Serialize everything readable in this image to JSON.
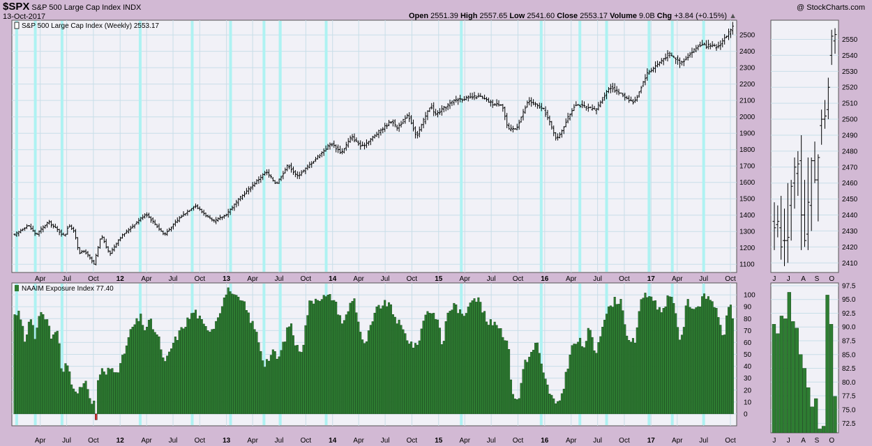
{
  "header": {
    "symbol": "$SPX",
    "name": "S&P 500 Large Cap Index",
    "exchange": "INDX",
    "date": "13-Oct-2017",
    "watermark": "@ StockCharts.com",
    "open_label": "Open",
    "open": "2551.39",
    "high_label": "High",
    "high": "2557.65",
    "low_label": "Low",
    "low": "2541.60",
    "close_label": "Close",
    "close": "2553.17",
    "volume_label": "Volume",
    "volume": "9.0B",
    "chg_label": "Chg",
    "chg": "+3.84 (+0.15%)"
  },
  "colors": {
    "background": "#d2b9d4",
    "panel": "#f1f1f7",
    "grid": "#c8dee8",
    "highlight": "#aef2f2",
    "price_bar": "#000000",
    "histogram": "#2e7d32",
    "histogram_negative": "#d32f2f"
  },
  "chart_data": [
    {
      "type": "ohlc",
      "legend": "S&P 500 Large Cap Index (Weekly) 2553.17",
      "y_ticks": [
        1100,
        1200,
        1300,
        1400,
        1500,
        1600,
        1700,
        1800,
        1900,
        2000,
        2100,
        2200,
        2300,
        2400,
        2500
      ],
      "ylim": [
        1050,
        2590
      ],
      "x_range": [
        "2011-01-03",
        "2017-10-13"
      ],
      "x_ticks": [
        {
          "date": "2011-04-01",
          "label": "Apr",
          "bold": false
        },
        {
          "date": "2011-07-01",
          "label": "Jul",
          "bold": false
        },
        {
          "date": "2011-10-01",
          "label": "Oct",
          "bold": false
        },
        {
          "date": "2012-01-01",
          "label": "12",
          "bold": true
        },
        {
          "date": "2012-04-01",
          "label": "Apr",
          "bold": false
        },
        {
          "date": "2012-07-01",
          "label": "Jul",
          "bold": false
        },
        {
          "date": "2012-10-01",
          "label": "Oct",
          "bold": false
        },
        {
          "date": "2013-01-01",
          "label": "13",
          "bold": true
        },
        {
          "date": "2013-04-01",
          "label": "Apr",
          "bold": false
        },
        {
          "date": "2013-07-01",
          "label": "Jul",
          "bold": false
        },
        {
          "date": "2013-10-01",
          "label": "Oct",
          "bold": false
        },
        {
          "date": "2014-01-01",
          "label": "14",
          "bold": true
        },
        {
          "date": "2014-04-01",
          "label": "Apr",
          "bold": false
        },
        {
          "date": "2014-07-01",
          "label": "Jul",
          "bold": false
        },
        {
          "date": "2014-10-01",
          "label": "Oct",
          "bold": false
        },
        {
          "date": "2015-01-01",
          "label": "15",
          "bold": true
        },
        {
          "date": "2015-04-01",
          "label": "Apr",
          "bold": false
        },
        {
          "date": "2015-07-01",
          "label": "Jul",
          "bold": false
        },
        {
          "date": "2015-10-01",
          "label": "Oct",
          "bold": false
        },
        {
          "date": "2016-01-01",
          "label": "16",
          "bold": true
        },
        {
          "date": "2016-04-01",
          "label": "Apr",
          "bold": false
        },
        {
          "date": "2016-07-01",
          "label": "Jul",
          "bold": false
        },
        {
          "date": "2016-10-01",
          "label": "Oct",
          "bold": false
        },
        {
          "date": "2017-01-01",
          "label": "17",
          "bold": true
        },
        {
          "date": "2017-04-01",
          "label": "Apr",
          "bold": false
        },
        {
          "date": "2017-07-01",
          "label": "Jul",
          "bold": false
        },
        {
          "date": "2017-10-01",
          "label": "Oct",
          "bold": false
        }
      ],
      "highlight_dates": [
        "2011-01-10",
        "2011-03-15",
        "2011-06-15",
        "2012-03-10",
        "2012-09-05",
        "2013-01-15",
        "2013-05-10",
        "2013-07-05",
        "2013-12-10",
        "2015-03-20",
        "2015-12-20",
        "2016-05-01",
        "2016-08-01",
        "2016-12-25",
        "2017-03-15",
        "2017-07-01"
      ],
      "close_path": [
        [
          "2011-01-03",
          1280
        ],
        [
          "2011-02-18",
          1340
        ],
        [
          "2011-03-18",
          1280
        ],
        [
          "2011-04-29",
          1360
        ],
        [
          "2011-06-24",
          1270
        ],
        [
          "2011-07-08",
          1345
        ],
        [
          "2011-07-29",
          1290
        ],
        [
          "2011-08-12",
          1170
        ],
        [
          "2011-09-02",
          1180
        ],
        [
          "2011-10-03",
          1100
        ],
        [
          "2011-10-28",
          1280
        ],
        [
          "2011-11-25",
          1160
        ],
        [
          "2011-12-30",
          1260
        ],
        [
          "2012-03-30",
          1410
        ],
        [
          "2012-06-01",
          1280
        ],
        [
          "2012-07-27",
          1390
        ],
        [
          "2012-09-14",
          1460
        ],
        [
          "2012-11-16",
          1360
        ],
        [
          "2012-12-28",
          1400
        ],
        [
          "2013-02-22",
          1515
        ],
        [
          "2013-05-17",
          1665
        ],
        [
          "2013-06-21",
          1590
        ],
        [
          "2013-08-02",
          1710
        ],
        [
          "2013-08-30",
          1635
        ],
        [
          "2013-10-04",
          1690
        ],
        [
          "2013-12-27",
          1840
        ],
        [
          "2014-01-31",
          1780
        ],
        [
          "2014-03-07",
          1880
        ],
        [
          "2014-04-11",
          1815
        ],
        [
          "2014-07-25",
          1980
        ],
        [
          "2014-08-08",
          1930
        ],
        [
          "2014-09-19",
          2010
        ],
        [
          "2014-10-17",
          1880
        ],
        [
          "2014-12-05",
          2075
        ],
        [
          "2014-12-19",
          2010
        ],
        [
          "2015-02-27",
          2105
        ],
        [
          "2015-05-22",
          2125
        ],
        [
          "2015-07-10",
          2075
        ],
        [
          "2015-08-07",
          2080
        ],
        [
          "2015-08-28",
          1920
        ],
        [
          "2015-09-25",
          1930
        ],
        [
          "2015-11-06",
          2100
        ],
        [
          "2015-12-31",
          2040
        ],
        [
          "2016-02-12",
          1860
        ],
        [
          "2016-04-15",
          2080
        ],
        [
          "2016-06-24",
          2040
        ],
        [
          "2016-08-12",
          2185
        ],
        [
          "2016-11-04",
          2085
        ],
        [
          "2016-12-16",
          2260
        ],
        [
          "2017-03-03",
          2385
        ],
        [
          "2017-04-14",
          2330
        ],
        [
          "2017-06-16",
          2440
        ],
        [
          "2017-08-18",
          2425
        ],
        [
          "2017-10-13",
          2553
        ]
      ]
    },
    {
      "type": "ohlc",
      "inset_of": "S&P 500 Large Cap Index (Weekly) 2553.17",
      "x_labels": [
        "J",
        "J",
        "A",
        "S",
        "O"
      ],
      "y_ticks": [
        2410,
        2420,
        2430,
        2440,
        2450,
        2460,
        2470,
        2480,
        2490,
        2500,
        2510,
        2520,
        2530,
        2540,
        2550
      ],
      "ylim": [
        2404,
        2562
      ],
      "bars": [
        [
          2436,
          2448,
          2418,
          2432
        ],
        [
          2434,
          2446,
          2426,
          2436
        ],
        [
          2432,
          2452,
          2412,
          2420
        ],
        [
          2424,
          2444,
          2408,
          2424
        ],
        [
          2424,
          2460,
          2410,
          2426
        ],
        [
          2446,
          2462,
          2424,
          2458
        ],
        [
          2460,
          2476,
          2444,
          2470
        ],
        [
          2466,
          2480,
          2452,
          2472
        ],
        [
          2474,
          2490,
          2418,
          2440
        ],
        [
          2440,
          2462,
          2420,
          2424
        ],
        [
          2428,
          2476,
          2418,
          2448
        ],
        [
          2446,
          2476,
          2430,
          2474
        ],
        [
          2474,
          2486,
          2460,
          2462
        ],
        [
          2462,
          2478,
          2436,
          2476
        ],
        [
          2496,
          2506,
          2484,
          2500
        ],
        [
          2500,
          2512,
          2494,
          2502
        ],
        [
          2506,
          2526,
          2500,
          2520
        ],
        [
          2540,
          2556,
          2534,
          2552
        ],
        [
          2549,
          2557,
          2541,
          2553
        ]
      ]
    },
    {
      "type": "bar",
      "legend": "NAAIM Exposure Index 77.40",
      "y_ticks": [
        0,
        10,
        20,
        30,
        40,
        50,
        60,
        70,
        80,
        90,
        100
      ],
      "ylim": [
        -10,
        110
      ],
      "negative_date": "2011-10-07",
      "negative_value": -5,
      "path": [
        [
          "2011-01-03",
          80
        ],
        [
          "2011-01-14",
          87
        ],
        [
          "2011-01-28",
          78
        ],
        [
          "2011-02-11",
          55
        ],
        [
          "2011-02-18",
          78
        ],
        [
          "2011-03-04",
          84
        ],
        [
          "2011-03-11",
          58
        ],
        [
          "2011-03-25",
          80
        ],
        [
          "2011-04-15",
          85
        ],
        [
          "2011-05-13",
          62
        ],
        [
          "2011-05-27",
          75
        ],
        [
          "2011-06-10",
          48
        ],
        [
          "2011-06-17",
          25
        ],
        [
          "2011-06-24",
          48
        ],
        [
          "2011-07-08",
          38
        ],
        [
          "2011-07-22",
          22
        ],
        [
          "2011-08-12",
          20
        ],
        [
          "2011-09-09",
          25
        ],
        [
          "2011-09-30",
          5
        ],
        [
          "2011-10-14",
          25
        ],
        [
          "2011-10-28",
          38
        ],
        [
          "2011-11-11",
          32
        ],
        [
          "2011-11-25",
          38
        ],
        [
          "2011-12-30",
          38
        ],
        [
          "2012-02-10",
          72
        ],
        [
          "2012-03-16",
          82
        ],
        [
          "2012-03-23",
          70
        ],
        [
          "2012-04-13",
          78
        ],
        [
          "2012-05-18",
          60
        ],
        [
          "2012-06-01",
          40
        ],
        [
          "2012-06-29",
          58
        ],
        [
          "2012-08-10",
          75
        ],
        [
          "2012-09-14",
          87
        ],
        [
          "2012-10-19",
          72
        ],
        [
          "2012-11-16",
          72
        ],
        [
          "2012-12-21",
          95
        ],
        [
          "2013-01-11",
          108
        ],
        [
          "2013-01-25",
          98
        ],
        [
          "2013-03-01",
          93
        ],
        [
          "2013-04-19",
          65
        ],
        [
          "2013-05-10",
          42
        ],
        [
          "2013-06-14",
          52
        ],
        [
          "2013-06-28",
          45
        ],
        [
          "2013-08-09",
          78
        ],
        [
          "2013-08-30",
          55
        ],
        [
          "2013-09-20",
          55
        ],
        [
          "2013-10-11",
          92
        ],
        [
          "2013-11-08",
          98
        ],
        [
          "2014-01-03",
          98
        ],
        [
          "2014-02-07",
          75
        ],
        [
          "2014-03-14",
          100
        ],
        [
          "2014-04-18",
          55
        ],
        [
          "2014-06-06",
          90
        ],
        [
          "2014-07-11",
          93
        ],
        [
          "2014-08-08",
          80
        ],
        [
          "2014-09-19",
          62
        ],
        [
          "2014-10-17",
          55
        ],
        [
          "2014-11-21",
          88
        ],
        [
          "2014-12-26",
          82
        ],
        [
          "2015-01-16",
          55
        ],
        [
          "2015-01-30",
          85
        ],
        [
          "2015-02-27",
          92
        ],
        [
          "2015-03-27",
          80
        ],
        [
          "2015-04-24",
          99
        ],
        [
          "2015-05-22",
          95
        ],
        [
          "2015-06-19",
          75
        ],
        [
          "2015-07-17",
          78
        ],
        [
          "2015-08-28",
          60
        ],
        [
          "2015-09-11",
          20
        ],
        [
          "2015-10-02",
          8
        ],
        [
          "2015-10-23",
          45
        ],
        [
          "2015-11-13",
          48
        ],
        [
          "2015-12-04",
          62
        ],
        [
          "2015-12-25",
          35
        ],
        [
          "2016-01-15",
          20
        ],
        [
          "2016-02-12",
          5
        ],
        [
          "2016-03-04",
          20
        ],
        [
          "2016-04-01",
          55
        ],
        [
          "2016-04-29",
          62
        ],
        [
          "2016-05-13",
          55
        ],
        [
          "2016-06-03",
          72
        ],
        [
          "2016-06-24",
          50
        ],
        [
          "2016-07-22",
          80
        ],
        [
          "2016-08-26",
          95
        ],
        [
          "2016-09-23",
          95
        ],
        [
          "2016-10-14",
          58
        ],
        [
          "2016-11-11",
          62
        ],
        [
          "2016-11-25",
          98
        ],
        [
          "2017-01-06",
          99
        ],
        [
          "2017-02-03",
          85
        ],
        [
          "2017-03-03",
          99
        ],
        [
          "2017-03-24",
          90
        ],
        [
          "2017-04-14",
          58
        ],
        [
          "2017-05-05",
          95
        ],
        [
          "2017-06-02",
          88
        ],
        [
          "2017-07-07",
          99
        ],
        [
          "2017-08-04",
          95
        ],
        [
          "2017-08-25",
          75
        ],
        [
          "2017-09-08",
          65
        ],
        [
          "2017-09-29",
          95
        ],
        [
          "2017-10-13",
          77.4
        ]
      ]
    },
    {
      "type": "bar",
      "inset_of": "NAAIM Exposure Index 77.40",
      "x_labels": [
        "J",
        "J",
        "A",
        "S",
        "O"
      ],
      "y_ticks": [
        72.5,
        75.0,
        77.5,
        80.0,
        82.5,
        85.0,
        87.5,
        90.0,
        92.5,
        95.0,
        97.5
      ],
      "ylim": [
        70.8,
        98.0
      ],
      "values": [
        90.5,
        88.8,
        92.0,
        91.5,
        96.3,
        91.0,
        89.8,
        85.0,
        82.5,
        79.0,
        75.5,
        77.0,
        71.5,
        72.0,
        95.8,
        90.5,
        77.4
      ]
    }
  ]
}
